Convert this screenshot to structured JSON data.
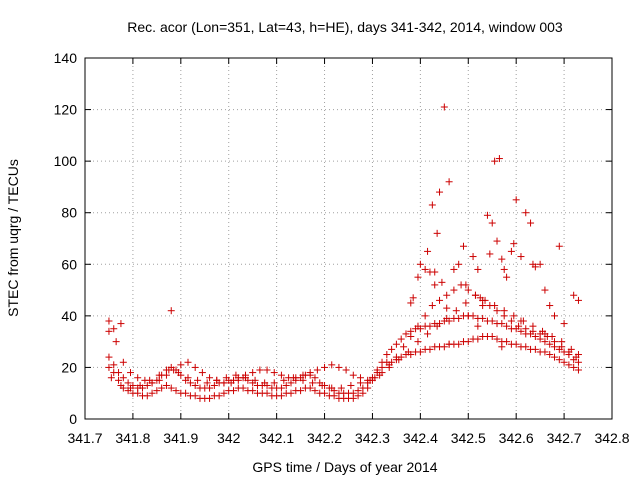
{
  "chart_data": {
    "type": "scatter",
    "title": "Rec. acor (Lon=351, Lat=43, h=HE), days 341-342, 2014, window 003",
    "xlabel": "GPS time / Days of year 2014",
    "ylabel": "STEC from uqrg / TECUs",
    "xlim": [
      341.7,
      342.8
    ],
    "ylim": [
      0,
      140
    ],
    "grid": true,
    "marker": "+",
    "marker_color": "#cc0000",
    "xticks": [
      "341.7",
      "341.8",
      "341.9",
      "342",
      "342.1",
      "342.2",
      "342.3",
      "342.4",
      "342.5",
      "342.6",
      "342.7",
      "342.8"
    ],
    "yticks": [
      "0",
      "20",
      "40",
      "60",
      "80",
      "100",
      "120",
      "140"
    ],
    "x": [
      341.75,
      341.76,
      341.77,
      341.78,
      341.79,
      341.8,
      341.81,
      341.82,
      341.83,
      341.84,
      341.85,
      341.86,
      341.87,
      341.88,
      341.89,
      341.9,
      341.91,
      341.92,
      341.93,
      341.94,
      341.95,
      341.96,
      341.97,
      341.98,
      341.99,
      342.0,
      342.01,
      342.02,
      342.03,
      342.04,
      342.05,
      342.06,
      342.07,
      342.08,
      342.09,
      342.1,
      342.11,
      342.12,
      342.13,
      342.14,
      342.15,
      342.16,
      342.17,
      342.18,
      342.19,
      342.2,
      342.21,
      342.22,
      342.23,
      342.24,
      342.25,
      342.26,
      342.27,
      342.28,
      342.29,
      342.3,
      342.31,
      342.32,
      342.33,
      342.34,
      342.35,
      342.36,
      342.37,
      342.38,
      342.39,
      342.4,
      342.41,
      342.42,
      342.43,
      342.44,
      342.45,
      342.46,
      342.47,
      342.48,
      342.49,
      342.5,
      342.51,
      342.52,
      342.53,
      342.54,
      342.55,
      342.56,
      342.57,
      342.58,
      342.59,
      342.6,
      342.61,
      342.62,
      342.63,
      342.64,
      342.65,
      342.66,
      342.67,
      342.68,
      342.69,
      342.7,
      342.71,
      342.72,
      342.73,
      341.75,
      341.76,
      341.77,
      341.78,
      341.79,
      341.8,
      341.81,
      341.82,
      341.83,
      341.84,
      341.85,
      341.86,
      341.87,
      341.88,
      341.89,
      341.9,
      341.91,
      341.92,
      341.93,
      341.94,
      341.95,
      341.96,
      341.97,
      341.98,
      341.99,
      342.0,
      342.01,
      342.02,
      342.03,
      342.04,
      342.05,
      342.06,
      342.07,
      342.08,
      342.09,
      342.1,
      342.11,
      342.12,
      342.13,
      342.14,
      342.15,
      342.16,
      342.17,
      342.18,
      342.19,
      342.2,
      342.21,
      342.22,
      342.23,
      342.24,
      342.25,
      342.26,
      342.27,
      342.28,
      342.29,
      342.3,
      342.31,
      342.32,
      342.33,
      342.34,
      342.35,
      342.36,
      342.37,
      342.38,
      342.39,
      342.4,
      342.41,
      342.42,
      342.43,
      342.44,
      342.45,
      342.46,
      342.47,
      342.48,
      342.49,
      342.5,
      342.51,
      342.52,
      342.53,
      342.54,
      342.55,
      342.56,
      342.57,
      342.58,
      342.59,
      342.6,
      342.61,
      342.62,
      342.63,
      342.64,
      342.65,
      342.66,
      342.67,
      342.68,
      342.69,
      342.7,
      342.71,
      342.72,
      342.73,
      341.75,
      341.765,
      341.78,
      341.795,
      341.81,
      341.825,
      341.84,
      341.855,
      341.87,
      341.885,
      341.9,
      341.915,
      341.93,
      341.945,
      341.96,
      341.975,
      341.99,
      342.005,
      342.02,
      342.035,
      342.05,
      342.065,
      342.08,
      342.095,
      342.11,
      342.125,
      342.14,
      342.155,
      342.17,
      342.185,
      342.2,
      342.215,
      342.23,
      342.245,
      342.26,
      342.275,
      342.29,
      342.305,
      342.32,
      342.335,
      342.35,
      342.365,
      342.38,
      342.395,
      342.41,
      342.425,
      342.44,
      342.455,
      342.47,
      342.485,
      342.5,
      342.515,
      342.53,
      342.545,
      342.56,
      342.575,
      342.59,
      342.605,
      342.62,
      342.635,
      342.65,
      342.665,
      342.68,
      342.695,
      342.71,
      342.725,
      341.755,
      341.775,
      341.795,
      341.815,
      341.835,
      341.855,
      341.875,
      341.895,
      341.915,
      341.935,
      341.955,
      341.975,
      341.995,
      342.015,
      342.035,
      342.055,
      342.075,
      342.095,
      342.115,
      342.135,
      342.155,
      342.175,
      342.195,
      342.215,
      342.235,
      342.255,
      342.275,
      342.295,
      342.315,
      342.335,
      342.355,
      342.375,
      342.395,
      342.415,
      342.435,
      342.455,
      342.475,
      342.495,
      342.515,
      342.535,
      342.555,
      342.575,
      342.595,
      342.615,
      342.635,
      342.655,
      342.675,
      342.695,
      342.715,
      342.73,
      341.75,
      341.76,
      341.775,
      341.88,
      342.38,
      342.385,
      342.395,
      342.4,
      342.41,
      342.415,
      342.42,
      342.425,
      342.43,
      342.435,
      342.44,
      342.445,
      342.45,
      342.455,
      342.46,
      342.47,
      342.48,
      342.49,
      342.495,
      342.5,
      342.51,
      342.52,
      342.525,
      342.53,
      342.54,
      342.545,
      342.55,
      342.555,
      342.56,
      342.565,
      342.57,
      342.575,
      342.58,
      342.59,
      342.595,
      342.6,
      342.61,
      342.62,
      342.63,
      342.635,
      342.64,
      342.65,
      342.66,
      342.67,
      342.68,
      342.69,
      342.7,
      342.72,
      342.73,
      342.43,
      342.46,
      342.52,
      342.57,
      342.61,
      342.66
    ],
    "y": [
      20,
      18,
      15,
      12,
      11,
      10,
      10,
      9,
      9,
      10,
      11,
      12,
      13,
      12,
      11,
      10,
      10,
      9,
      9,
      8,
      8,
      8,
      9,
      9,
      10,
      11,
      11,
      12,
      12,
      11,
      11,
      10,
      10,
      10,
      9,
      9,
      9,
      10,
      10,
      11,
      11,
      12,
      12,
      11,
      10,
      10,
      9,
      9,
      8,
      8,
      8,
      8,
      9,
      10,
      12,
      15,
      18,
      20,
      22,
      22,
      23,
      24,
      25,
      25,
      26,
      26,
      27,
      27,
      28,
      28,
      28,
      29,
      29,
      29,
      30,
      30,
      31,
      31,
      32,
      32,
      32,
      31,
      30,
      30,
      29,
      29,
      28,
      28,
      27,
      27,
      26,
      26,
      25,
      24,
      23,
      22,
      21,
      20,
      19,
      24,
      21,
      18,
      16,
      14,
      13,
      12,
      12,
      13,
      14,
      15,
      17,
      19,
      20,
      19,
      17,
      15,
      14,
      13,
      12,
      12,
      12,
      13,
      14,
      14,
      15,
      15,
      16,
      16,
      15,
      14,
      13,
      13,
      13,
      12,
      12,
      12,
      13,
      14,
      15,
      16,
      17,
      17,
      16,
      14,
      13,
      12,
      11,
      10,
      10,
      10,
      10,
      11,
      12,
      14,
      16,
      19,
      22,
      25,
      27,
      29,
      31,
      33,
      34,
      35,
      35,
      36,
      36,
      37,
      37,
      38,
      38,
      39,
      39,
      40,
      40,
      40,
      39,
      39,
      38,
      38,
      37,
      37,
      36,
      35,
      35,
      34,
      33,
      33,
      32,
      31,
      30,
      29,
      28,
      27,
      26,
      25,
      23,
      22,
      34,
      30,
      22,
      18,
      16,
      15,
      14,
      15,
      17,
      19,
      21,
      22,
      20,
      18,
      16,
      15,
      14,
      14,
      15,
      17,
      18,
      19,
      19,
      18,
      17,
      16,
      16,
      17,
      18,
      19,
      20,
      21,
      20,
      19,
      17,
      16,
      15,
      16,
      18,
      21,
      24,
      28,
      32,
      36,
      40,
      44,
      46,
      48,
      50,
      52,
      50,
      48,
      46,
      44,
      42,
      40,
      38,
      36,
      35,
      34,
      33,
      32,
      30,
      28,
      26,
      24,
      16,
      13,
      12,
      13,
      15,
      17,
      19,
      18,
      16,
      15,
      14,
      15,
      16,
      17,
      16,
      15,
      14,
      14,
      15,
      16,
      15,
      14,
      13,
      12,
      12,
      13,
      14,
      15,
      17,
      20,
      23,
      26,
      30,
      33,
      36,
      39,
      42,
      45,
      48,
      46,
      44,
      42,
      40,
      38,
      36,
      34,
      32,
      30,
      27,
      25,
      38,
      35,
      37,
      42,
      45,
      47,
      55,
      60,
      58,
      65,
      57,
      83,
      52,
      72,
      88,
      53,
      121,
      43,
      92,
      58,
      60,
      67,
      52,
      40,
      63,
      58,
      47,
      44,
      79,
      64,
      76,
      100,
      69,
      101,
      62,
      58,
      55,
      65,
      68,
      85,
      63,
      80,
      76,
      60,
      59,
      60,
      50,
      44,
      40,
      67,
      37,
      48,
      46,
      57,
      29,
      36,
      28,
      38,
      33
    ]
  }
}
